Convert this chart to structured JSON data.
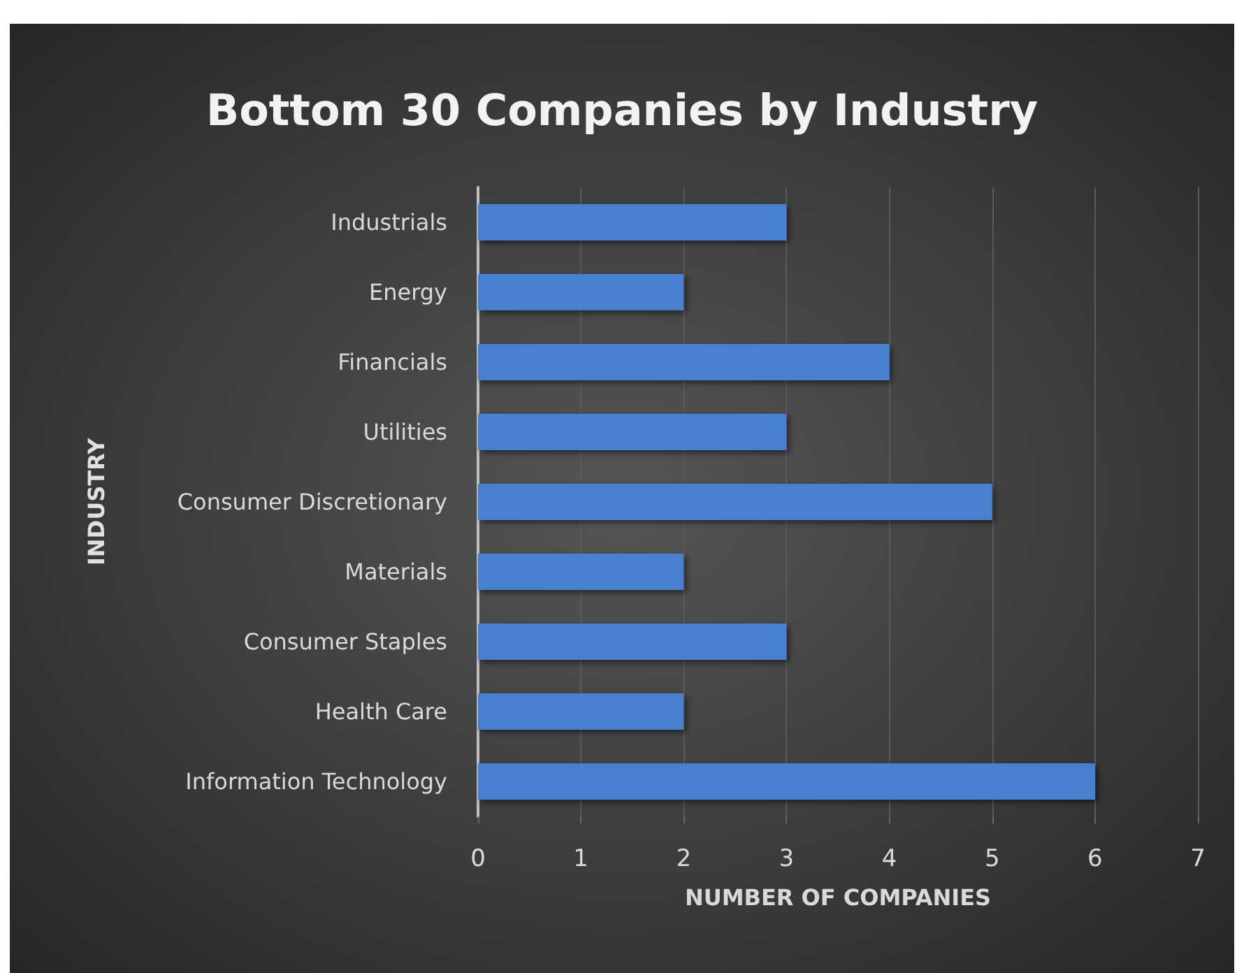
{
  "chart_data": {
    "type": "bar",
    "orientation": "horizontal",
    "title": "Bottom 30 Companies by Industry",
    "xlabel": "NUMBER OF COMPANIES",
    "ylabel": "INDUSTRY",
    "categories": [
      "Industrials",
      "Energy",
      "Financials",
      "Utilities",
      "Consumer Discretionary",
      "Materials",
      "Consumer Staples",
      "Health Care",
      "Information Technology"
    ],
    "values": [
      3,
      2,
      4,
      3,
      5,
      2,
      3,
      2,
      6
    ],
    "color": "#4a7fcf",
    "xlim": [
      0,
      7
    ],
    "xticks": [
      0,
      1,
      2,
      3,
      4,
      5,
      6,
      7
    ],
    "grid": "x"
  }
}
